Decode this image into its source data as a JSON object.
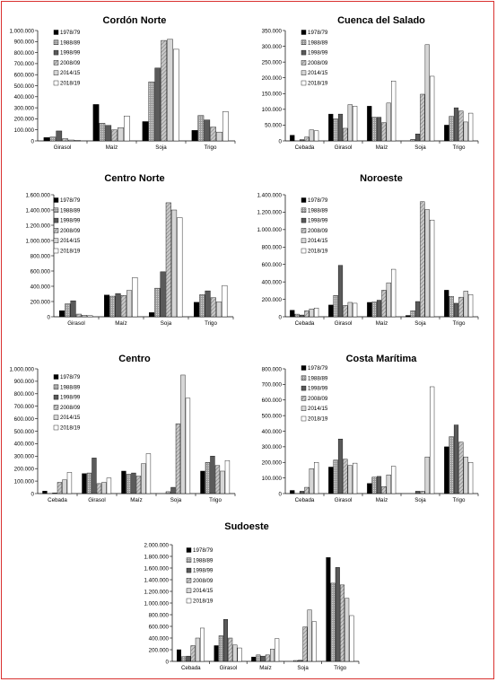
{
  "legend_labels": [
    "1978/79",
    "1988/89",
    "1998/99",
    "2008/09",
    "2014/15",
    "2018/19"
  ],
  "chart_data": [
    {
      "type": "bar",
      "title": "Cordón Norte",
      "categories": [
        "Girasol",
        "Maíz",
        "Soja",
        "Trigo"
      ],
      "ylim": [
        0,
        1000000
      ],
      "yticks": [
        "0",
        "100.000",
        "200.000",
        "300.000",
        "400.000",
        "500.000",
        "600.000",
        "700.000",
        "800.000",
        "900.000",
        "1.000.000"
      ],
      "series": [
        {
          "name": "1978/79",
          "values": [
            30000,
            330000,
            175000,
            95000
          ]
        },
        {
          "name": "1988/89",
          "values": [
            35000,
            160000,
            535000,
            230000
          ]
        },
        {
          "name": "1998/99",
          "values": [
            90000,
            140000,
            660000,
            190000
          ]
        },
        {
          "name": "2008/09",
          "values": [
            20000,
            100000,
            910000,
            125000
          ]
        },
        {
          "name": "2014/15",
          "values": [
            8000,
            120000,
            920000,
            80000
          ]
        },
        {
          "name": "2018/19",
          "values": [
            5000,
            225000,
            830000,
            265000
          ]
        }
      ]
    },
    {
      "type": "bar",
      "title": "Cuenca del Salado",
      "categories": [
        "Cebada",
        "Girasol",
        "Maíz",
        "Soja",
        "Trigo"
      ],
      "ylim": [
        0,
        350000
      ],
      "yticks": [
        "0",
        "50.000",
        "100.000",
        "150.000",
        "200.000",
        "250.000",
        "300.000",
        "350.000"
      ],
      "series": [
        {
          "name": "1978/79",
          "values": [
            18000,
            85000,
            110000,
            0,
            50000
          ]
        },
        {
          "name": "1988/89",
          "values": [
            0,
            70000,
            75000,
            5000,
            78000
          ]
        },
        {
          "name": "1998/99",
          "values": [
            4000,
            85000,
            75000,
            22000,
            105000
          ]
        },
        {
          "name": "2008/09",
          "values": [
            12000,
            40000,
            58000,
            148000,
            95000
          ]
        },
        {
          "name": "2014/15",
          "values": [
            35000,
            115000,
            120000,
            305000,
            60000
          ]
        },
        {
          "name": "2018/19",
          "values": [
            32000,
            110000,
            190000,
            205000,
            88000
          ]
        }
      ]
    },
    {
      "type": "bar",
      "title": "Centro Norte",
      "categories": [
        "Girasol",
        "Maíz",
        "Soja",
        "Trigo"
      ],
      "ylim": [
        0,
        1600000
      ],
      "yticks": [
        "0",
        "200.000",
        "400.000",
        "600.000",
        "800.000",
        "1.000.000",
        "1.200.000",
        "1.400.000",
        "1.600.000"
      ],
      "series": [
        {
          "name": "1978/79",
          "values": [
            80000,
            285000,
            55000,
            190000
          ]
        },
        {
          "name": "1988/89",
          "values": [
            170000,
            270000,
            375000,
            290000
          ]
        },
        {
          "name": "1998/99",
          "values": [
            210000,
            305000,
            590000,
            340000
          ]
        },
        {
          "name": "2008/09",
          "values": [
            35000,
            280000,
            1495000,
            250000
          ]
        },
        {
          "name": "2014/15",
          "values": [
            20000,
            345000,
            1400000,
            195000
          ]
        },
        {
          "name": "2018/19",
          "values": [
            15000,
            515000,
            1300000,
            410000
          ]
        }
      ]
    },
    {
      "type": "bar",
      "title": "Noroeste",
      "categories": [
        "Cebada",
        "Girasol",
        "Maíz",
        "Soja",
        "Trigo"
      ],
      "ylim": [
        0,
        1400000
      ],
      "yticks": [
        "0",
        "200.000",
        "400.000",
        "600.000",
        "800.000",
        "1.000.000",
        "1.200.000",
        "1.400.000"
      ],
      "series": [
        {
          "name": "1978/79",
          "values": [
            75000,
            135000,
            165000,
            15000,
            305000
          ]
        },
        {
          "name": "1988/89",
          "values": [
            30000,
            245000,
            170000,
            70000,
            235000
          ]
        },
        {
          "name": "1998/99",
          "values": [
            20000,
            590000,
            190000,
            175000,
            155000
          ]
        },
        {
          "name": "2008/09",
          "values": [
            70000,
            130000,
            305000,
            1320000,
            225000
          ]
        },
        {
          "name": "2014/15",
          "values": [
            90000,
            165000,
            390000,
            1230000,
            295000
          ]
        },
        {
          "name": "2018/19",
          "values": [
            100000,
            155000,
            545000,
            1110000,
            255000
          ]
        }
      ]
    },
    {
      "type": "bar",
      "title": "Centro",
      "categories": [
        "Cebada",
        "Girasol",
        "Maíz",
        "Soja",
        "Trigo"
      ],
      "ylim": [
        0,
        1000000
      ],
      "yticks": [
        "0",
        "100.000",
        "200.000",
        "300.000",
        "400.000",
        "500.000",
        "600.000",
        "700.000",
        "800.000",
        "900.000",
        "1.000.000"
      ],
      "series": [
        {
          "name": "1978/79",
          "values": [
            20000,
            160000,
            180000,
            0,
            180000
          ]
        },
        {
          "name": "1988/89",
          "values": [
            0,
            165000,
            155000,
            15000,
            250000
          ]
        },
        {
          "name": "1998/99",
          "values": [
            5000,
            285000,
            165000,
            50000,
            300000
          ]
        },
        {
          "name": "2008/09",
          "values": [
            90000,
            80000,
            140000,
            560000,
            225000
          ]
        },
        {
          "name": "2014/15",
          "values": [
            110000,
            90000,
            240000,
            950000,
            180000
          ]
        },
        {
          "name": "2018/19",
          "values": [
            170000,
            125000,
            320000,
            765000,
            265000
          ]
        }
      ]
    },
    {
      "type": "bar",
      "title": "Costa Marítima",
      "categories": [
        "Cebada",
        "Girasol",
        "Maíz",
        "Soja",
        "Trigo"
      ],
      "ylim": [
        0,
        800000
      ],
      "yticks": [
        "0",
        "100.000",
        "200.000",
        "300.000",
        "400.000",
        "500.000",
        "600.000",
        "700.000",
        "800.000"
      ],
      "series": [
        {
          "name": "1978/79",
          "values": [
            20000,
            170000,
            65000,
            0,
            300000
          ]
        },
        {
          "name": "1988/89",
          "values": [
            0,
            215000,
            105000,
            0,
            365000
          ]
        },
        {
          "name": "1998/99",
          "values": [
            15000,
            350000,
            110000,
            15000,
            440000
          ]
        },
        {
          "name": "2008/09",
          "values": [
            40000,
            220000,
            45000,
            15000,
            330000
          ]
        },
        {
          "name": "2014/15",
          "values": [
            160000,
            180000,
            120000,
            235000,
            235000
          ]
        },
        {
          "name": "2018/19",
          "values": [
            200000,
            195000,
            175000,
            685000,
            200000
          ]
        }
      ]
    },
    {
      "type": "bar",
      "title": "Sudoeste",
      "categories": [
        "Cebada",
        "Girasol",
        "Maíz",
        "Soja",
        "Trigo"
      ],
      "ylim": [
        0,
        2000000
      ],
      "yticks": [
        "0",
        "200.000",
        "400.000",
        "600.000",
        "800.000",
        "1.000.000",
        "1.200.000",
        "1.400.000",
        "1.600.000",
        "1.800.000",
        "2.000.000"
      ],
      "series": [
        {
          "name": "1978/79",
          "values": [
            200000,
            270000,
            75000,
            0,
            1780000
          ]
        },
        {
          "name": "1988/89",
          "values": [
            80000,
            440000,
            110000,
            15000,
            1340000
          ]
        },
        {
          "name": "1998/99",
          "values": [
            90000,
            720000,
            90000,
            20000,
            1610000
          ]
        },
        {
          "name": "2008/09",
          "values": [
            270000,
            400000,
            110000,
            590000,
            1310000
          ]
        },
        {
          "name": "2014/15",
          "values": [
            400000,
            280000,
            210000,
            880000,
            1080000
          ]
        },
        {
          "name": "2018/19",
          "values": [
            570000,
            230000,
            390000,
            680000,
            785000
          ]
        }
      ]
    }
  ]
}
